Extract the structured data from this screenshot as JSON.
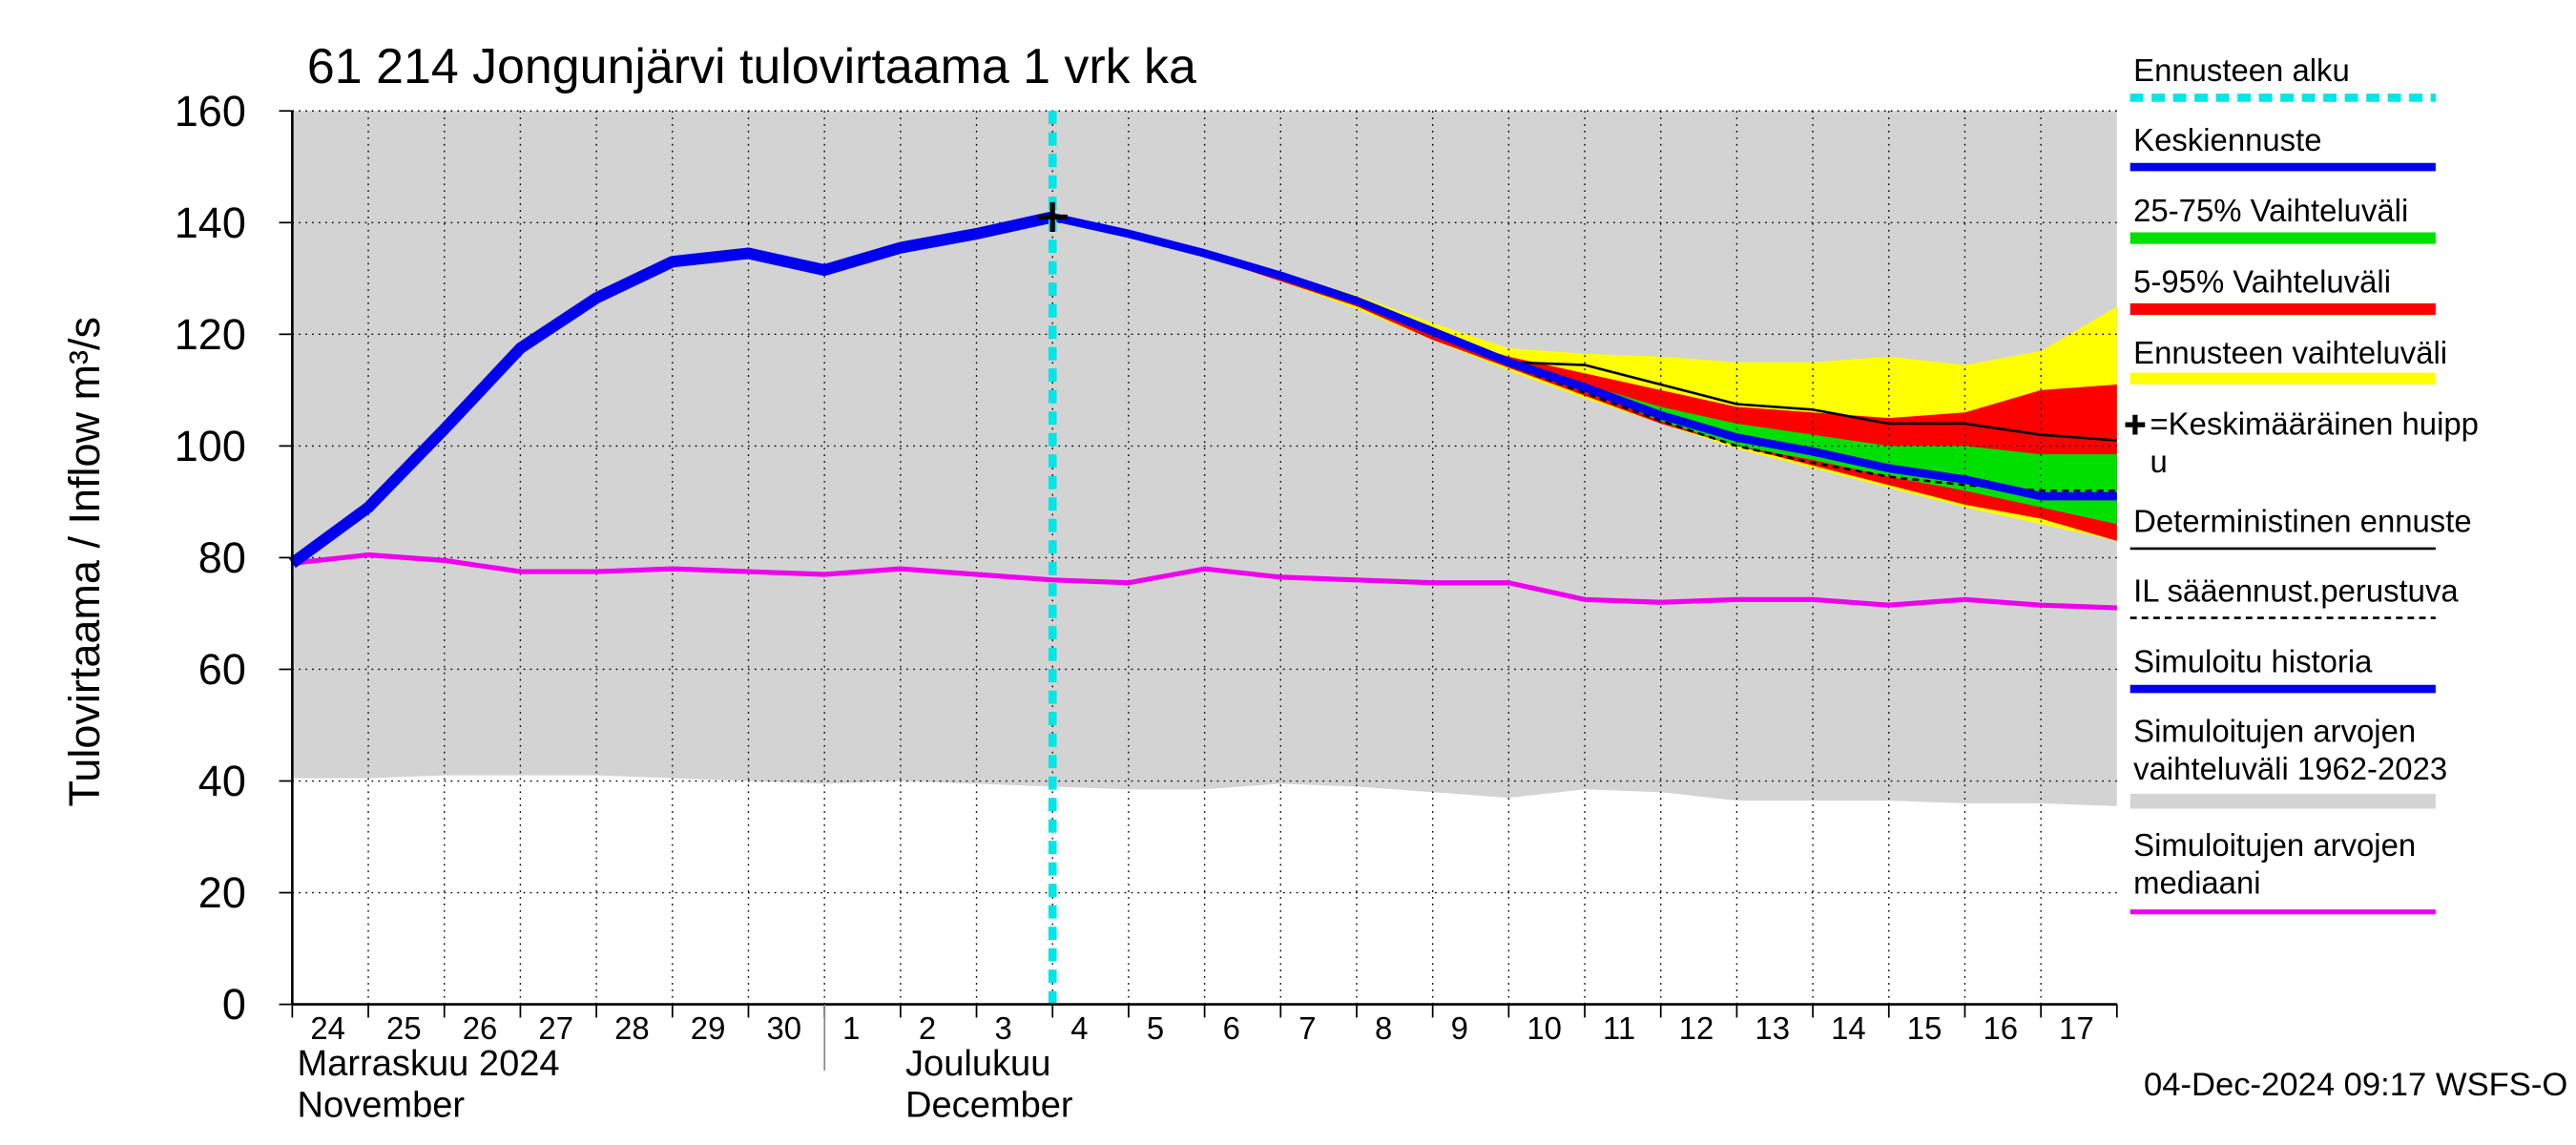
{
  "chart_data": {
    "type": "band-line",
    "title": "61 214 Jongunjärvi tulovirtaama 1 vrk ka",
    "y_label": "Tulovirtaama / Inflow    m³/s",
    "month_labels": [
      {
        "lines": [
          "Marraskuu 2024",
          "November"
        ],
        "at": "24"
      },
      {
        "lines": [
          "Joulukuu",
          "December"
        ],
        "at": "2"
      }
    ],
    "footer": "04-Dec-2024 09:17 WSFS-O",
    "categories": [
      "24",
      "25",
      "26",
      "27",
      "28",
      "29",
      "30",
      "1",
      "2",
      "3",
      "4",
      "5",
      "6",
      "7",
      "8",
      "9",
      "10",
      "11",
      "12",
      "13",
      "14",
      "15",
      "16",
      "17",
      null
    ],
    "ylim": [
      0,
      160
    ],
    "yticks": [
      0,
      20,
      40,
      60,
      80,
      100,
      120,
      140,
      160
    ],
    "grid": true,
    "forecast_start": {
      "name": "Ennusteen alku",
      "color": "#00e5e5",
      "at": "4"
    },
    "peak": {
      "name": "=Keskimääräinen huipp\nu",
      "value": 141,
      "at": "4"
    },
    "series": [
      {
        "name": "Keskiennuste",
        "kind": "line",
        "color": "#0000ee",
        "width": 5,
        "values": [
          null,
          null,
          null,
          null,
          null,
          null,
          null,
          null,
          null,
          null,
          141,
          138,
          134.5,
          130.5,
          126,
          120.5,
          115,
          110.5,
          105.5,
          101.5,
          99,
          96,
          94,
          91,
          91
        ]
      },
      {
        "name": "25-75% Vaihteluväli",
        "kind": "band",
        "color": "#00e000",
        "upper": [
          null,
          null,
          null,
          null,
          null,
          null,
          null,
          null,
          null,
          null,
          141,
          138,
          134.5,
          130,
          125.5,
          120,
          115,
          111,
          107,
          104,
          102,
          100,
          100,
          98.5,
          98.5
        ],
        "lower": [
          null,
          null,
          null,
          null,
          null,
          null,
          null,
          null,
          null,
          null,
          141,
          138,
          134.5,
          130,
          125.5,
          120,
          114.5,
          110,
          104.5,
          100,
          97.5,
          94.5,
          92,
          89,
          86
        ]
      },
      {
        "name": "5-95% Vaihteluväli",
        "kind": "band",
        "color": "#ff0000",
        "upper": [
          null,
          null,
          null,
          null,
          null,
          null,
          null,
          null,
          null,
          null,
          141,
          138,
          134.5,
          130,
          125.5,
          120,
          116,
          113,
          110,
          107,
          106,
          105,
          106,
          110,
          111
        ],
        "lower": [
          null,
          null,
          null,
          null,
          null,
          null,
          null,
          null,
          null,
          null,
          141,
          138,
          134,
          129.5,
          125,
          119,
          114,
          109,
          104,
          100,
          96.5,
          93,
          89.5,
          87,
          83
        ]
      },
      {
        "name": "Ennusteen vaihteluväli",
        "kind": "band",
        "color": "#ffff00",
        "upper": [
          null,
          null,
          null,
          null,
          null,
          null,
          null,
          null,
          null,
          null,
          141,
          138.5,
          135,
          131,
          127,
          122,
          117.5,
          116.5,
          116,
          115,
          115,
          116,
          114.5,
          117,
          125
        ],
        "lower": [
          null,
          null,
          null,
          null,
          null,
          null,
          null,
          null,
          null,
          null,
          141,
          138,
          134,
          129.5,
          124.5,
          119,
          113.5,
          108.5,
          104,
          99.5,
          96,
          92.5,
          89,
          86,
          83
        ]
      },
      {
        "name": "Deterministinen ennuste",
        "kind": "line",
        "color": "#000000",
        "width": 1.5,
        "values": [
          null,
          null,
          null,
          null,
          null,
          null,
          null,
          null,
          null,
          null,
          141,
          138,
          134.5,
          130.5,
          126,
          120,
          115,
          114.5,
          111,
          107.5,
          106.5,
          104,
          104,
          102,
          101
        ]
      },
      {
        "name": "IL sääennust.perustuva",
        "kind": "line",
        "dashed": true,
        "color": "#000000",
        "width": 1.5,
        "values": [
          null,
          null,
          null,
          null,
          null,
          null,
          null,
          null,
          null,
          null,
          141,
          138,
          134.5,
          130.5,
          126,
          120,
          114.5,
          109.5,
          104.5,
          100,
          97,
          94.5,
          93,
          92,
          92
        ]
      },
      {
        "name": "Simuloitu historia",
        "kind": "line",
        "color": "#0000ee",
        "width": 7,
        "values": [
          79,
          89,
          103,
          117.5,
          126.5,
          133,
          134.5,
          131.5,
          135.5,
          138,
          141,
          null,
          null,
          null,
          null,
          null,
          null,
          null,
          null,
          null,
          null,
          null,
          null,
          null,
          null
        ]
      },
      {
        "name": "Simuloitujen arvojen\nvaihteluväli 1962-2023",
        "kind": "band",
        "color": "#d3d3d3",
        "upper": [
          160,
          160,
          160,
          160,
          160,
          160,
          160,
          160,
          160,
          160,
          160,
          160,
          160,
          160,
          160,
          160,
          160,
          160,
          160,
          160,
          160,
          160,
          160,
          160,
          160
        ],
        "lower": [
          40.5,
          40.5,
          41,
          41,
          41,
          40.5,
          40,
          39.5,
          40,
          39.5,
          39,
          38.5,
          38.5,
          39.5,
          39,
          38,
          37,
          38.5,
          38,
          36.5,
          36.5,
          36.5,
          36,
          36,
          35.5
        ]
      },
      {
        "name": "Simuloitujen arvojen\nmediaani",
        "kind": "line",
        "color": "#ee00ee",
        "width": 3,
        "values": [
          79,
          80.5,
          79.5,
          77.5,
          77.5,
          78,
          77.5,
          77,
          78,
          77,
          76,
          75.5,
          78,
          76.5,
          76,
          75.5,
          75.5,
          72.5,
          72,
          72.5,
          72.5,
          71.5,
          72.5,
          71.5,
          71
        ]
      }
    ]
  }
}
